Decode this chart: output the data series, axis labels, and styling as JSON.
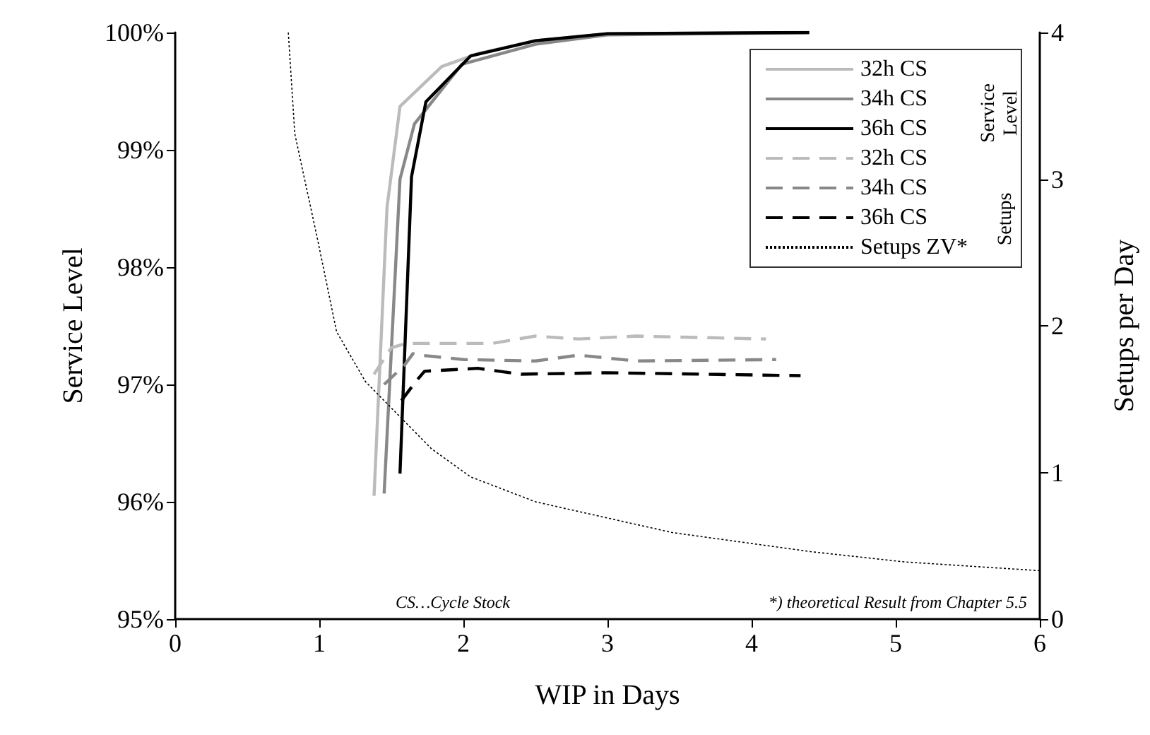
{
  "chart_data": {
    "type": "line",
    "xlabel": "WIP in Days",
    "ylabel": "Service Level",
    "y2label": "Setups per Day",
    "xlim": [
      0,
      6
    ],
    "xticks": [
      0,
      1,
      2,
      3,
      4,
      5,
      6
    ],
    "ylim": [
      95,
      100
    ],
    "yticks": [
      {
        "value": 95,
        "label": "95%"
      },
      {
        "value": 96,
        "label": "96%"
      },
      {
        "value": 97,
        "label": "97%"
      },
      {
        "value": 98,
        "label": "98%"
      },
      {
        "value": 99,
        "label": "99%"
      },
      {
        "value": 100,
        "label": "100%"
      }
    ],
    "y2lim": [
      0,
      4
    ],
    "y2ticks": [
      0,
      1,
      2,
      3,
      4
    ],
    "grid": false,
    "legend": "top right",
    "marker": "none",
    "annotations": [
      "Service Level",
      "Setups",
      "CS…Cycle Stock",
      "*) theoretical Result from Chapter 5.5"
    ],
    "series": [
      {
        "name": "32h CS",
        "color": "#bbbbbb",
        "line_style": "solid",
        "x": [
          1.38,
          1.47,
          1.56,
          1.85,
          2.1,
          2.5,
          3.0,
          4.4
        ],
        "values": [
          96.05,
          98.51,
          99.37,
          99.71,
          99.82,
          99.93,
          99.99,
          100
        ]
      },
      {
        "name": "34h CS",
        "color": "#888888",
        "line_style": "solid",
        "x": [
          1.45,
          1.56,
          1.66,
          1.99,
          2.5,
          3.0,
          4.4
        ],
        "values": [
          96.07,
          98.75,
          99.22,
          99.73,
          99.9,
          99.98,
          100
        ]
      },
      {
        "name": "36h CS",
        "color": "#000000",
        "line_style": "solid",
        "x": [
          1.56,
          1.64,
          1.74,
          2.05,
          2.5,
          3.0,
          4.4
        ],
        "values": [
          96.24,
          98.77,
          99.41,
          99.8,
          99.93,
          99.99,
          100
        ]
      },
      {
        "name": "32h CS",
        "color": "#bbbbbb",
        "line_style": "dashed",
        "axis": "y2",
        "x": [
          1.38,
          1.5,
          1.6,
          2.2,
          2.5,
          2.8,
          3.2,
          4.1
        ],
        "values": [
          1.67,
          1.85,
          1.88,
          1.88,
          1.93,
          1.91,
          1.93,
          1.91
        ]
      },
      {
        "name": "34h CS",
        "color": "#888888",
        "line_style": "dashed",
        "axis": "y2",
        "x": [
          1.45,
          1.59,
          1.65,
          1.7,
          2.0,
          2.5,
          2.8,
          3.2,
          4.17
        ],
        "values": [
          1.6,
          1.73,
          1.81,
          1.8,
          1.77,
          1.76,
          1.8,
          1.76,
          1.77
        ]
      },
      {
        "name": "36h CS",
        "color": "#000000",
        "line_style": "dashed",
        "axis": "y2",
        "x": [
          1.57,
          1.67,
          1.73,
          2.1,
          2.4,
          3.0,
          4.34
        ],
        "values": [
          1.49,
          1.62,
          1.69,
          1.71,
          1.67,
          1.68,
          1.66
        ]
      },
      {
        "name": "Setups ZV*",
        "color": "#000000",
        "line_style": "dotted",
        "axis": "y2",
        "x": [
          0.785,
          0.83,
          0.99,
          1.12,
          1.32,
          1.78,
          2.05,
          2.5,
          3.45,
          4.41,
          5.06,
          6
        ],
        "values": [
          4,
          3.31,
          2.58,
          1.96,
          1.62,
          1.16,
          0.97,
          0.8,
          0.59,
          0.46,
          0.39,
          0.33
        ]
      }
    ]
  }
}
